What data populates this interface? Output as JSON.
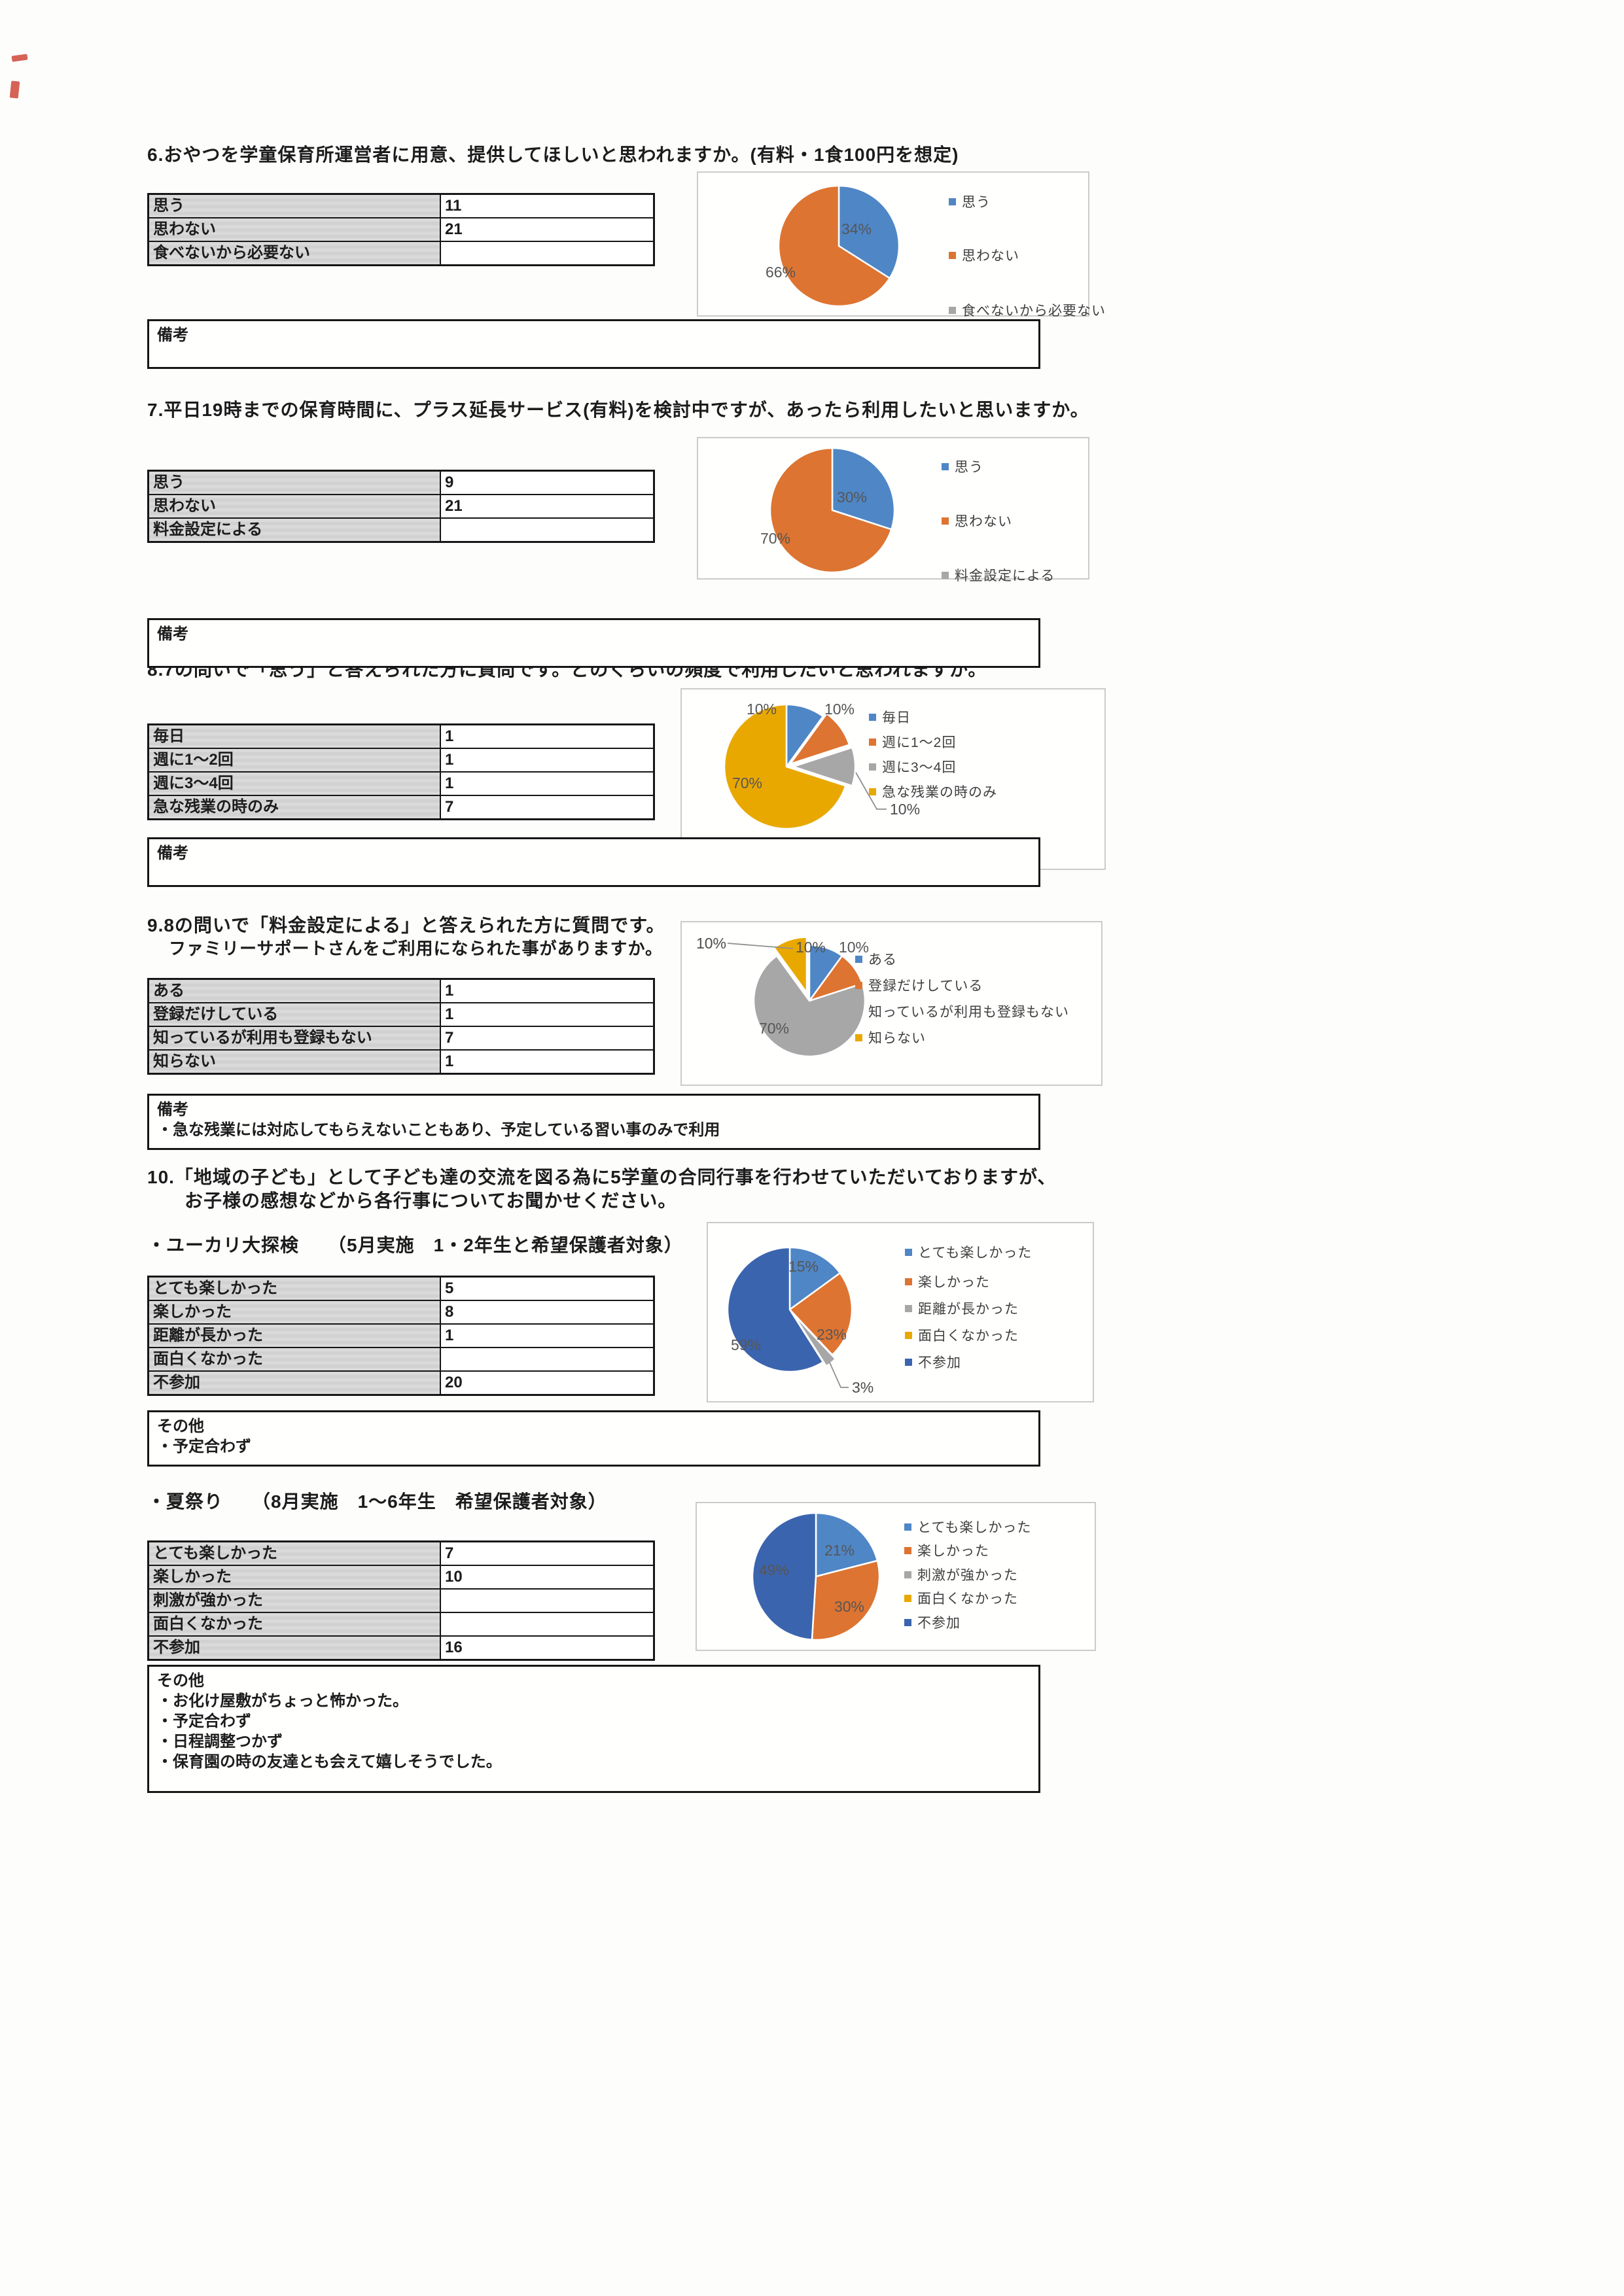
{
  "sections": {
    "q6": {
      "title": "6.おやつを学童保育所運営者に用意、提供してほしいと思われますか。(有料・1食100円を想定)",
      "table": {
        "rows": [
          [
            "思う",
            "11"
          ],
          [
            "思わない",
            "21"
          ],
          [
            "食べないから必要ない",
            ""
          ]
        ]
      },
      "remark_lines": [
        "備考"
      ]
    },
    "q7": {
      "title": "7.平日19時までの保育時間に、プラス延長サービス(有料)を検討中ですが、あったら利用したいと思いますか。",
      "table": {
        "rows": [
          [
            "思う",
            "9"
          ],
          [
            "思わない",
            "21"
          ],
          [
            "料金設定による",
            ""
          ]
        ]
      },
      "remark_lines": [
        "備考"
      ]
    },
    "q8": {
      "title": "8.7の問いで「思う」と答えられた方に質問です。どのくらいの頻度で利用したいと思われますか。",
      "table": {
        "rows": [
          [
            "毎日",
            "1"
          ],
          [
            "週に1〜2回",
            "1"
          ],
          [
            "週に3〜4回",
            "1"
          ],
          [
            "急な残業の時のみ",
            "7"
          ]
        ]
      },
      "remark_lines": [
        "備考"
      ]
    },
    "q9": {
      "title": "9.8の問いで「料金設定による」と答えられた方に質問です。",
      "subtitle": "ファミリーサポートさんをご利用になられた事がありますか。",
      "table": {
        "rows": [
          [
            "ある",
            "1"
          ],
          [
            "登録だけしている",
            "1"
          ],
          [
            "知っているが利用も登録もない",
            "7"
          ],
          [
            "知らない",
            "1"
          ]
        ]
      },
      "remark_lines": [
        "備考",
        "・急な残業には対応してもらえないこともあり、予定している習い事のみで利用"
      ]
    },
    "q10": {
      "title_line1": "10.「地域の子ども」として子ども達の交流を図る為に5学童の合同行事を行わせていただいておりますが、",
      "title_line2": "お子様の感想などから各行事についてお聞かせください。"
    },
    "q10a": {
      "event_title": "・ユーカリ大探検　　（5月実施　1・2年生と希望保護者対象）",
      "table": {
        "rows": [
          [
            "とても楽しかった",
            "5"
          ],
          [
            "楽しかった",
            "8"
          ],
          [
            "距離が長かった",
            "1"
          ],
          [
            "面白くなかった",
            ""
          ],
          [
            "不参加",
            "20"
          ]
        ]
      },
      "remark_lines": [
        "その他",
        "・予定合わず"
      ]
    },
    "q10b": {
      "event_title": "・夏祭り　　（8月実施　1〜6年生　希望保護者対象）",
      "table": {
        "rows": [
          [
            "とても楽しかった",
            "7"
          ],
          [
            "楽しかった",
            "10"
          ],
          [
            "刺激が強かった",
            ""
          ],
          [
            "面白くなかった",
            ""
          ],
          [
            "不参加",
            "16"
          ]
        ]
      },
      "remark_lines": [
        "その他",
        "・お化け屋敷がちょっと怖かった。",
        "・予定合わず",
        "・日程調整つかず",
        "・保育園の時の友達とも会えて嬉しそうでした。"
      ]
    }
  },
  "chart_data": [
    {
      "id": "q6",
      "type": "pie",
      "legend_position": "right",
      "label_format": "percent",
      "slices": [
        {
          "label": "思う",
          "pct": 34,
          "color": "#4f86c6",
          "label_pos": "in"
        },
        {
          "label": "思わない",
          "pct": 66,
          "color": "#dd7431",
          "label_pos": "in"
        },
        {
          "label": "食べないから必要ない",
          "pct": 0,
          "color": "#a7a7a7",
          "label_pos": "none"
        }
      ]
    },
    {
      "id": "q7",
      "type": "pie",
      "legend_position": "right",
      "label_format": "percent",
      "slices": [
        {
          "label": "思う",
          "pct": 30,
          "color": "#4f86c6",
          "label_pos": "in"
        },
        {
          "label": "思わない",
          "pct": 70,
          "color": "#dd7431",
          "label_pos": "in"
        },
        {
          "label": "料金設定による",
          "pct": 0,
          "color": "#a7a7a7",
          "label_pos": "none"
        }
      ]
    },
    {
      "id": "q8",
      "type": "pie",
      "legend_position": "right",
      "label_format": "percent",
      "slices": [
        {
          "label": "毎日",
          "pct": 10,
          "color": "#4f86c6",
          "label_pos": "out-top-left"
        },
        {
          "label": "週に1〜2回",
          "pct": 10,
          "color": "#dd7431",
          "label_pos": "out-top-right"
        },
        {
          "label": "週に3〜4回",
          "pct": 10,
          "color": "#a7a7a7",
          "label_pos": "leader-bottom-right"
        },
        {
          "label": "急な残業の時のみ",
          "pct": 70,
          "color": "#e9a800",
          "label_pos": "in"
        }
      ]
    },
    {
      "id": "q9",
      "type": "pie",
      "legend_position": "right",
      "label_format": "percent",
      "slices": [
        {
          "label": "ある",
          "pct": 10,
          "color": "#4f86c6",
          "label_pos": "out-top-center"
        },
        {
          "label": "登録だけしている",
          "pct": 10,
          "color": "#dd7431",
          "label_pos": "out-top-right"
        },
        {
          "label": "知っているが利用も登録もない",
          "pct": 70,
          "color": "#a7a7a7",
          "label_pos": "in"
        },
        {
          "label": "知らない",
          "pct": 10,
          "color": "#e9a800",
          "label_pos": "leader-top-left"
        }
      ]
    },
    {
      "id": "q10a",
      "type": "pie",
      "legend_position": "right",
      "label_format": "percent",
      "slices": [
        {
          "label": "とても楽しかった",
          "pct": 15,
          "color": "#4f86c6",
          "label_pos": "in"
        },
        {
          "label": "楽しかった",
          "pct": 23,
          "color": "#dd7431",
          "label_pos": "in"
        },
        {
          "label": "距離が長かった",
          "pct": 3,
          "color": "#a7a7a7",
          "label_pos": "leader-bottom-right"
        },
        {
          "label": "面白くなかった",
          "pct": 0,
          "color": "#e9a800",
          "label_pos": "none"
        },
        {
          "label": "不参加",
          "pct": 59,
          "color": "#3b64ae",
          "label_pos": "in"
        }
      ]
    },
    {
      "id": "q10b",
      "type": "pie",
      "legend_position": "right",
      "label_format": "percent",
      "slices": [
        {
          "label": "とても楽しかった",
          "pct": 21,
          "color": "#4f86c6",
          "label_pos": "in"
        },
        {
          "label": "楽しかった",
          "pct": 30,
          "color": "#dd7431",
          "label_pos": "in"
        },
        {
          "label": "刺激が強かった",
          "pct": 0,
          "color": "#a7a7a7",
          "label_pos": "none"
        },
        {
          "label": "面白くなかった",
          "pct": 0,
          "color": "#e9a800",
          "label_pos": "none"
        },
        {
          "label": "不参加",
          "pct": 49,
          "color": "#3b64ae",
          "label_pos": "in"
        }
      ]
    }
  ]
}
